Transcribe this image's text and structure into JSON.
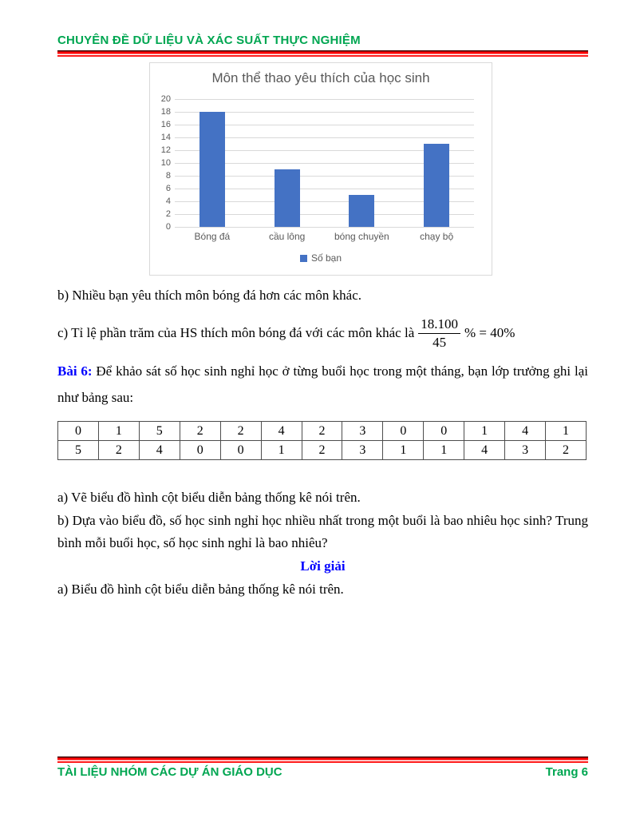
{
  "header": {
    "title": "CHUYÊN ĐỀ DỮ LIỆU VÀ XÁC SUẤT THỰC NGHIỆM"
  },
  "footer": {
    "left": "TÀI LIỆU NHÓM CÁC DỰ ÁN GIÁO DỤC",
    "right": "Trang 6"
  },
  "colors": {
    "header_green": "#00A651",
    "rule_red": "#FF0000",
    "accent_blue": "#0000FF",
    "chart_bar": "#4472C4",
    "chart_text": "#595959",
    "chart_grid": "#D9D9D9"
  },
  "chart_data": {
    "type": "bar",
    "title": "Môn thể thao yêu thích của học sinh",
    "categories": [
      "Bóng đá",
      "cầu lông",
      "bóng chuyền",
      "chạy bộ"
    ],
    "values": [
      18,
      9,
      5,
      13
    ],
    "series_name": "Số bạn",
    "legend_position": "bottom",
    "xlabel": "",
    "ylabel": "",
    "ylim": [
      0,
      20
    ],
    "ytick_step": 2,
    "grid": true,
    "bar_color": "#4472C4",
    "grid_color": "#D9D9D9",
    "text_color": "#595959"
  },
  "body": {
    "item_b5": "b) Nhiều bạn yêu thích môn bóng đá hơn các môn khác.",
    "item_c5": {
      "prefix": "c) Tỉ lệ phần trăm của HS thích môn bóng đá với các môn khác là",
      "frac_num": "18.100",
      "frac_den": "45",
      "suffix": "% = 40%"
    },
    "bai6_label": "Bài 6:",
    "bai6_text": " Để khảo sát số học sinh nghỉ học ở từng buổi học trong một tháng, bạn lớp trưởng ghi lại như bảng sau:",
    "table_rows": [
      [
        "0",
        "1",
        "5",
        "2",
        "2",
        "4",
        "2",
        "3",
        "0",
        "0",
        "1",
        "4",
        "1"
      ],
      [
        "5",
        "2",
        "4",
        "0",
        "0",
        "1",
        "2",
        "3",
        "1",
        "1",
        "4",
        "3",
        "2"
      ]
    ],
    "item_a6": "a) Vẽ biểu đồ hình cột biểu diễn bảng thống kê nói trên.",
    "item_b6": "b) Dựa vào biểu đồ, số học sinh nghỉ học nhiều nhất trong một buổi là bao nhiêu học sinh? Trung bình mỗi buổi học, số học sinh nghỉ là bao nhiêu?",
    "solution_heading": "Lời giải",
    "item_a6_answer": "a) Biểu đồ hình cột biểu diễn bảng thống kê nói trên."
  }
}
